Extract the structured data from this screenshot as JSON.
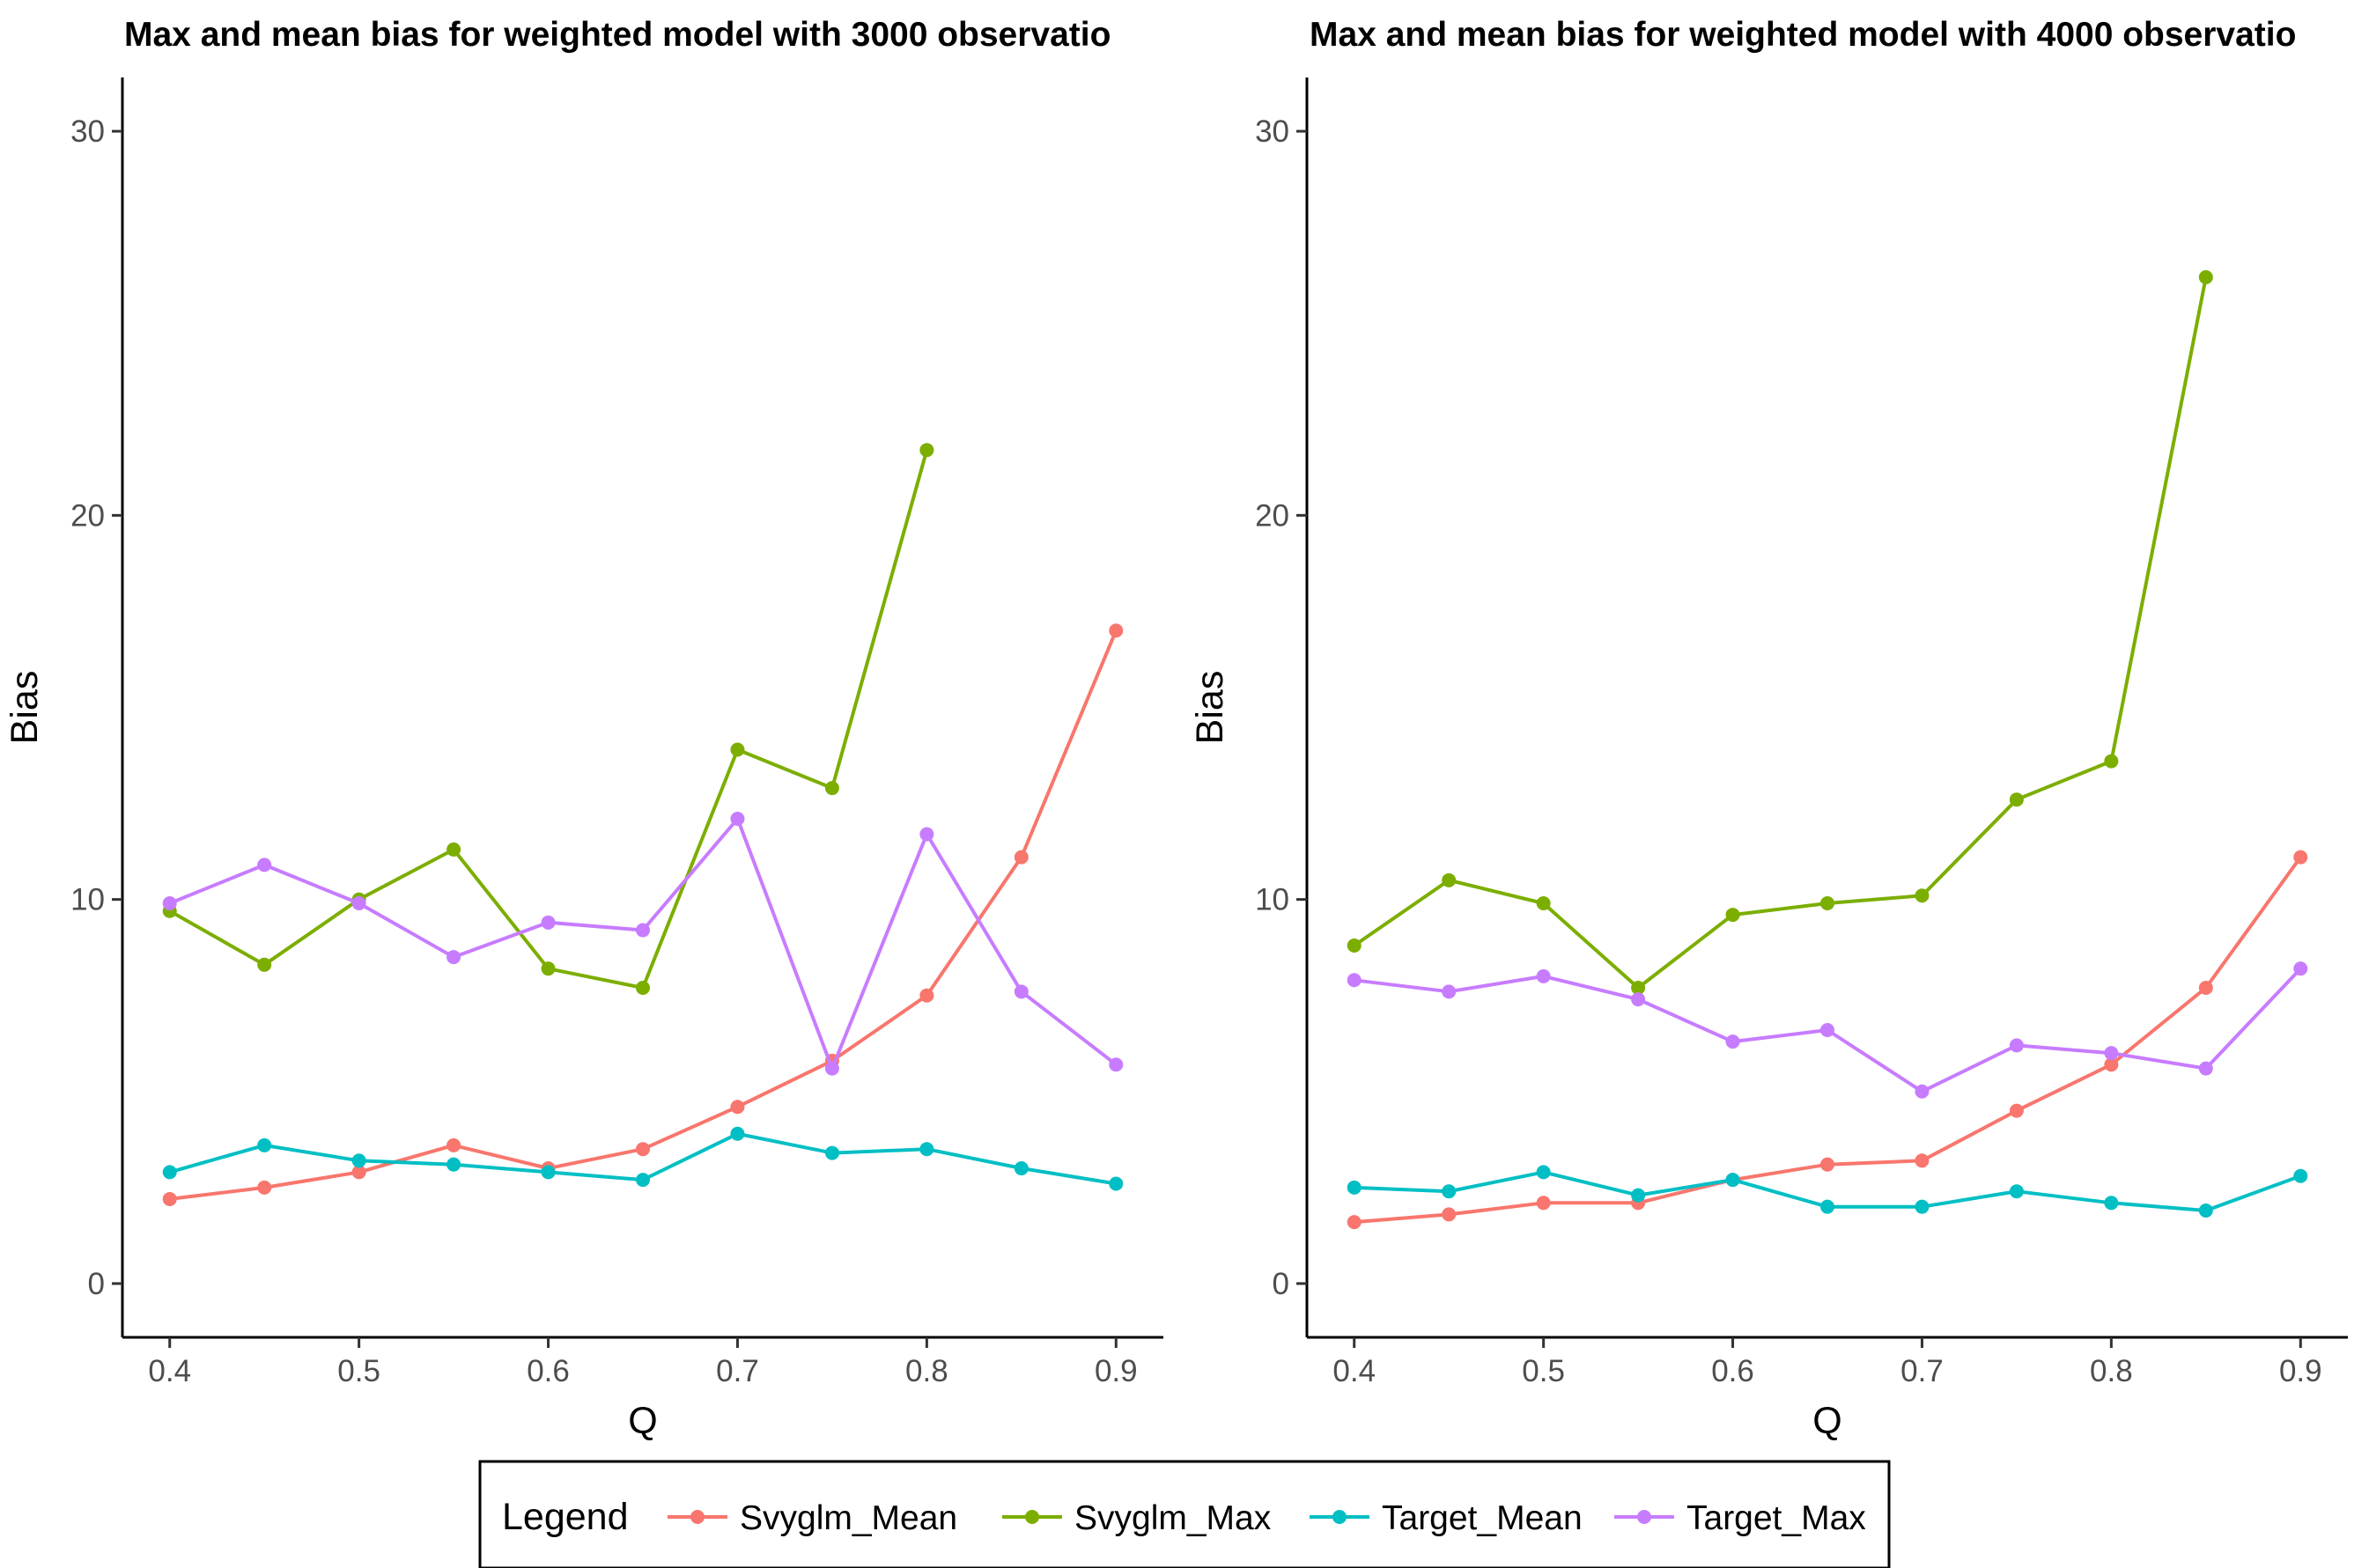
{
  "colors": {
    "Svyglm_Mean": "#F8766D",
    "Svyglm_Max": "#7CAE00",
    "Target_Mean": "#00BFC4",
    "Target_Max": "#C77CFF"
  },
  "legend": {
    "title": "Legend",
    "entries": [
      "Svyglm_Mean",
      "Svyglm_Max",
      "Target_Mean",
      "Target_Max"
    ]
  },
  "chart_data": [
    {
      "type": "line",
      "title": "Max and mean bias for weighted model with 3000 observatio",
      "xlabel": "Q",
      "ylabel": "Bias",
      "xlim": [
        0.375,
        0.925
      ],
      "ylim": [
        -1.4,
        31.4
      ],
      "xticks": [
        "0.4",
        "0.5",
        "0.6",
        "0.7",
        "0.8",
        "0.9"
      ],
      "yticks": [
        "0",
        "10",
        "20",
        "30"
      ],
      "grid": false,
      "legend_position": "bottom",
      "x": [
        0.4,
        0.45,
        0.5,
        0.55,
        0.6,
        0.65,
        0.7,
        0.75,
        0.8,
        0.85,
        0.9
      ],
      "series": [
        {
          "name": "Svyglm_Mean",
          "values": [
            2.2,
            2.5,
            2.9,
            3.6,
            3.0,
            3.5,
            4.6,
            5.8,
            7.5,
            11.1,
            17.0
          ]
        },
        {
          "name": "Svyglm_Max",
          "values": [
            9.7,
            8.3,
            10.0,
            11.3,
            8.2,
            7.7,
            13.9,
            12.9,
            21.7,
            null,
            null
          ]
        },
        {
          "name": "Target_Mean",
          "values": [
            2.9,
            3.6,
            3.2,
            3.1,
            2.9,
            2.7,
            3.9,
            3.4,
            3.5,
            3.0,
            2.6
          ]
        },
        {
          "name": "Target_Max",
          "values": [
            9.9,
            10.9,
            9.9,
            8.5,
            9.4,
            9.2,
            12.1,
            5.6,
            11.7,
            7.6,
            5.7
          ]
        }
      ]
    },
    {
      "type": "line",
      "title": "Max and mean bias for weighted model with 4000 observatio",
      "xlabel": "Q",
      "ylabel": "Bias",
      "xlim": [
        0.375,
        0.925
      ],
      "ylim": [
        -1.4,
        31.4
      ],
      "xticks": [
        "0.4",
        "0.5",
        "0.6",
        "0.7",
        "0.8",
        "0.9"
      ],
      "yticks": [
        "0",
        "10",
        "20",
        "30"
      ],
      "grid": false,
      "legend_position": "bottom",
      "x": [
        0.4,
        0.45,
        0.5,
        0.55,
        0.6,
        0.65,
        0.7,
        0.75,
        0.8,
        0.85,
        0.9
      ],
      "series": [
        {
          "name": "Svyglm_Mean",
          "values": [
            1.6,
            1.8,
            2.1,
            2.1,
            2.7,
            3.1,
            3.2,
            4.5,
            5.7,
            7.7,
            11.1
          ]
        },
        {
          "name": "Svyglm_Max",
          "values": [
            8.8,
            10.5,
            9.9,
            7.7,
            9.6,
            9.9,
            10.1,
            12.6,
            13.6,
            26.2,
            null
          ]
        },
        {
          "name": "Target_Mean",
          "values": [
            2.5,
            2.4,
            2.9,
            2.3,
            2.7,
            2.0,
            2.0,
            2.4,
            2.1,
            1.9,
            2.8
          ]
        },
        {
          "name": "Target_Max",
          "values": [
            7.9,
            7.6,
            8.0,
            7.4,
            6.3,
            6.6,
            5.0,
            6.2,
            6.0,
            5.6,
            8.2
          ]
        }
      ]
    }
  ]
}
